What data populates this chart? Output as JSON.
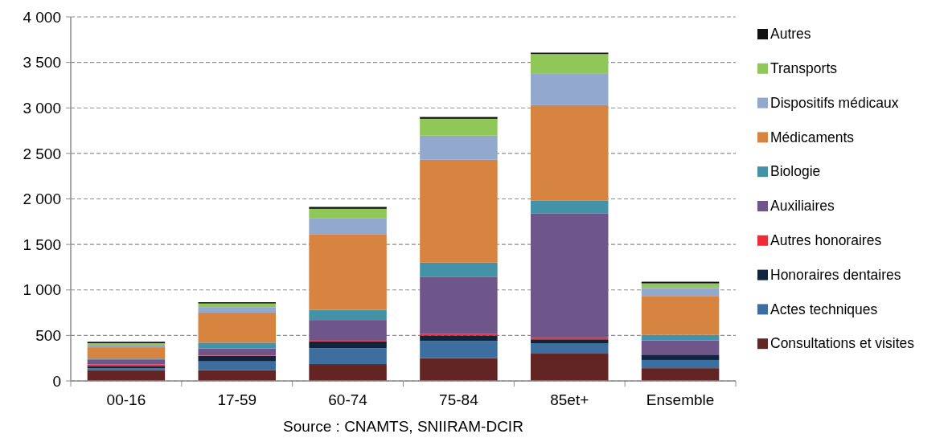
{
  "chart_data": {
    "type": "bar",
    "stacked": true,
    "categories": [
      "00-16",
      "17-59",
      "60-74",
      "75-84",
      "85et+",
      "Ensemble"
    ],
    "series": [
      {
        "name": "Consultations et visites",
        "color": "#632523",
        "values": [
          120,
          120,
          185,
          250,
          300,
          140
        ]
      },
      {
        "name": "Actes techniques",
        "color": "#3c6e9f",
        "values": [
          20,
          95,
          175,
          190,
          110,
          90
        ]
      },
      {
        "name": "Honoraires dentaires",
        "color": "#10243e",
        "values": [
          25,
          60,
          75,
          60,
          47,
          59
        ]
      },
      {
        "name": "Autres honoraires",
        "color": "#ee2b36",
        "values": [
          15,
          5,
          15,
          15,
          18,
          null
        ]
      },
      {
        "name": "Auxiliaires",
        "color": "#6e568b",
        "values": [
          50,
          76,
          220,
          630,
          1363,
          156
        ]
      },
      {
        "name": "Biologie",
        "color": "#4392a8",
        "values": [
          15,
          65,
          112,
          155,
          141,
          62
        ]
      },
      {
        "name": "Médicaments",
        "color": "#d6843f",
        "values": [
          125,
          330,
          826,
          1130,
          1051,
          427
        ]
      },
      {
        "name": "Dispositifs médicaux",
        "color": "#93a8cd",
        "values": [
          27,
          60,
          177,
          265,
          344,
          88
        ]
      },
      {
        "name": "Transports",
        "color": "#8fc858",
        "values": [
          18,
          40,
          106,
          185,
          218,
          50
        ]
      },
      {
        "name": "Autres",
        "color": "#111111",
        "values": [
          15,
          14,
          21,
          20,
          15,
          18
        ]
      }
    ],
    "ylim": [
      0,
      4000
    ],
    "yticks": [
      {
        "value": 0,
        "label": "0"
      },
      {
        "value": 500,
        "label": "500"
      },
      {
        "value": 1000,
        "label": "1 000"
      },
      {
        "value": 1500,
        "label": "1 500"
      },
      {
        "value": 2000,
        "label": "2 000"
      },
      {
        "value": 2500,
        "label": "2 500"
      },
      {
        "value": 3000,
        "label": "3 000"
      },
      {
        "value": 3500,
        "label": "3 500"
      },
      {
        "value": 4000,
        "label": "4 000"
      }
    ],
    "grid": "y",
    "legend": "right",
    "annotations": [
      "Source : CNAMTS, SNIIRAM-DCIR"
    ]
  }
}
